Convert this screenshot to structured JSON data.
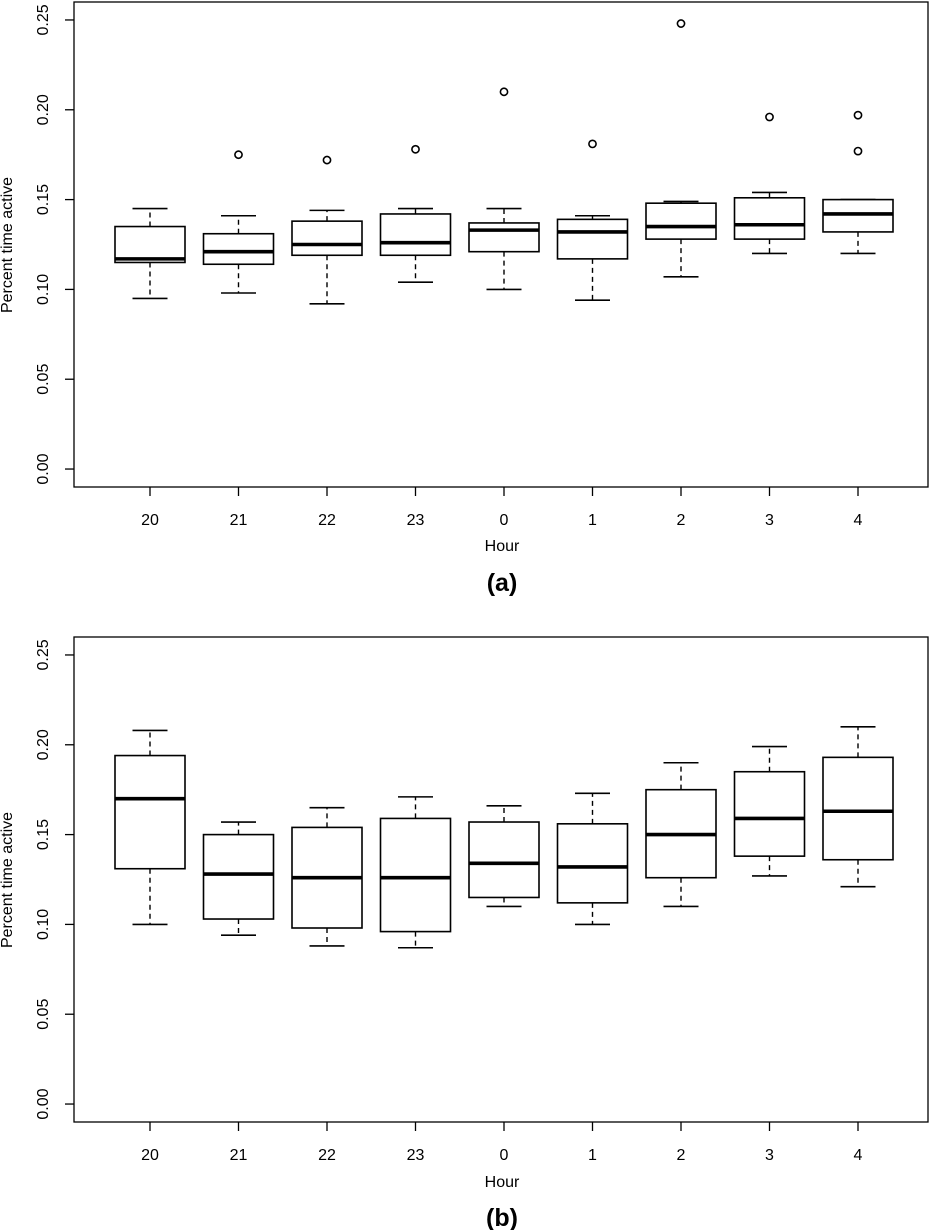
{
  "chart_data": [
    {
      "type": "box",
      "panel_label": "(a)",
      "xlabel": "Hour",
      "ylabel": "Percent time active",
      "ylim": [
        -0.01,
        0.26
      ],
      "yticks": [
        "0.00",
        "0.05",
        "0.10",
        "0.15",
        "0.20",
        "0.25"
      ],
      "categories": [
        "20",
        "21",
        "22",
        "23",
        "0",
        "1",
        "2",
        "3",
        "4"
      ],
      "boxes": [
        {
          "whisker_low": 0.095,
          "q1": 0.115,
          "median": 0.117,
          "q3": 0.135,
          "whisker_high": 0.145,
          "outliers": []
        },
        {
          "whisker_low": 0.098,
          "q1": 0.114,
          "median": 0.121,
          "q3": 0.131,
          "whisker_high": 0.141,
          "outliers": [
            0.175
          ]
        },
        {
          "whisker_low": 0.092,
          "q1": 0.119,
          "median": 0.125,
          "q3": 0.138,
          "whisker_high": 0.144,
          "outliers": [
            0.172
          ]
        },
        {
          "whisker_low": 0.104,
          "q1": 0.119,
          "median": 0.126,
          "q3": 0.142,
          "whisker_high": 0.145,
          "outliers": [
            0.178
          ]
        },
        {
          "whisker_low": 0.1,
          "q1": 0.121,
          "median": 0.133,
          "q3": 0.137,
          "whisker_high": 0.145,
          "outliers": [
            0.21
          ]
        },
        {
          "whisker_low": 0.094,
          "q1": 0.117,
          "median": 0.132,
          "q3": 0.139,
          "whisker_high": 0.141,
          "outliers": [
            0.181
          ]
        },
        {
          "whisker_low": 0.107,
          "q1": 0.128,
          "median": 0.135,
          "q3": 0.148,
          "whisker_high": 0.149,
          "outliers": [
            0.248
          ]
        },
        {
          "whisker_low": 0.12,
          "q1": 0.128,
          "median": 0.136,
          "q3": 0.151,
          "whisker_high": 0.154,
          "outliers": [
            0.196
          ]
        },
        {
          "whisker_low": 0.12,
          "q1": 0.132,
          "median": 0.142,
          "q3": 0.15,
          "whisker_high": 0.15,
          "outliers": [
            0.177,
            0.197
          ]
        }
      ]
    },
    {
      "type": "box",
      "panel_label": "(b)",
      "xlabel": "Hour",
      "ylabel": "Percent time active",
      "ylim": [
        -0.01,
        0.26
      ],
      "yticks": [
        "0.00",
        "0.05",
        "0.10",
        "0.15",
        "0.20",
        "0.25"
      ],
      "categories": [
        "20",
        "21",
        "22",
        "23",
        "0",
        "1",
        "2",
        "3",
        "4"
      ],
      "boxes": [
        {
          "whisker_low": 0.1,
          "q1": 0.131,
          "median": 0.17,
          "q3": 0.194,
          "whisker_high": 0.208,
          "outliers": []
        },
        {
          "whisker_low": 0.094,
          "q1": 0.103,
          "median": 0.128,
          "q3": 0.15,
          "whisker_high": 0.157,
          "outliers": []
        },
        {
          "whisker_low": 0.088,
          "q1": 0.098,
          "median": 0.126,
          "q3": 0.154,
          "whisker_high": 0.165,
          "outliers": []
        },
        {
          "whisker_low": 0.087,
          "q1": 0.096,
          "median": 0.126,
          "q3": 0.159,
          "whisker_high": 0.171,
          "outliers": []
        },
        {
          "whisker_low": 0.11,
          "q1": 0.115,
          "median": 0.134,
          "q3": 0.157,
          "whisker_high": 0.166,
          "outliers": []
        },
        {
          "whisker_low": 0.1,
          "q1": 0.112,
          "median": 0.132,
          "q3": 0.156,
          "whisker_high": 0.173,
          "outliers": []
        },
        {
          "whisker_low": 0.11,
          "q1": 0.126,
          "median": 0.15,
          "q3": 0.175,
          "whisker_high": 0.19,
          "outliers": []
        },
        {
          "whisker_low": 0.127,
          "q1": 0.138,
          "median": 0.159,
          "q3": 0.185,
          "whisker_high": 0.199,
          "outliers": []
        },
        {
          "whisker_low": 0.121,
          "q1": 0.136,
          "median": 0.163,
          "q3": 0.193,
          "whisker_high": 0.21,
          "outliers": []
        }
      ]
    }
  ]
}
